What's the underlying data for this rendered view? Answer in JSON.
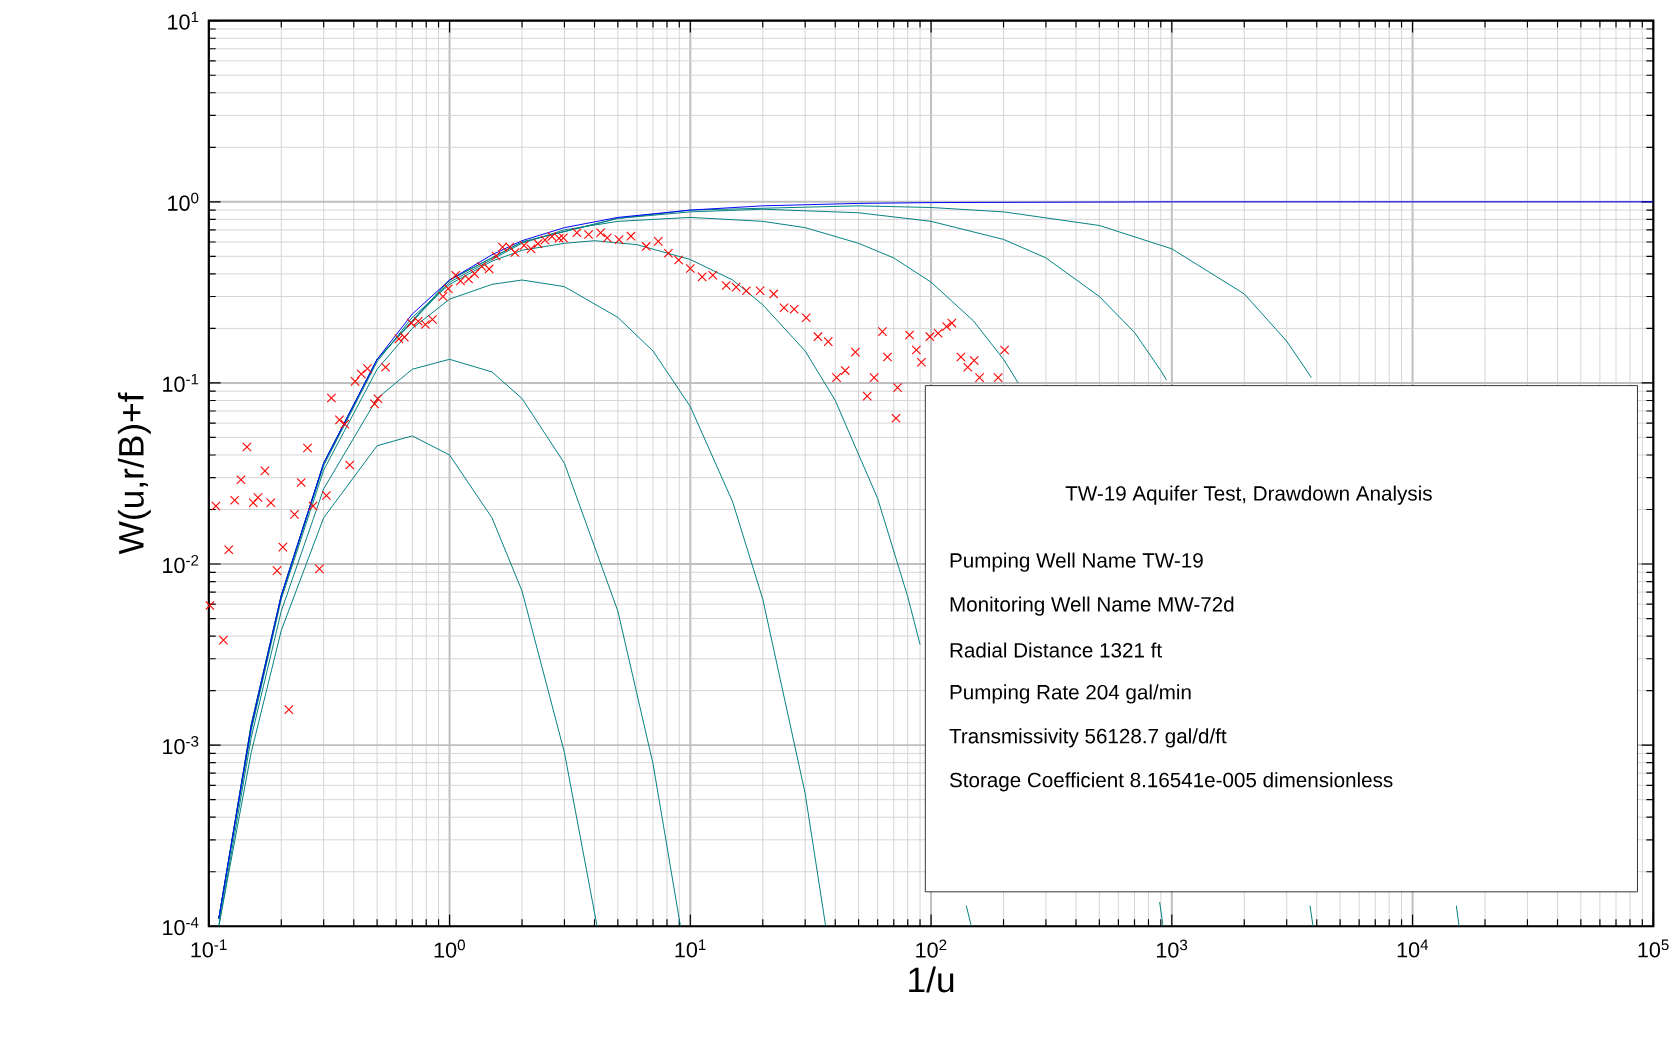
{
  "chart_data": {
    "type": "line",
    "xlabel": "1/u",
    "ylabel": "W(u,r/B)+f",
    "log": "xy",
    "grid": true,
    "line_style": "solid",
    "xlim": [
      0.1,
      100000
    ],
    "ylim": [
      0.0001,
      10
    ],
    "xticks": [
      {
        "value": 0.1,
        "label": "10$^{-1}$"
      },
      {
        "value": 1,
        "label": "10$^{0}$"
      },
      {
        "value": 10,
        "label": "10$^{1}$"
      },
      {
        "value": 100,
        "label": "10$^{2}$"
      },
      {
        "value": 1000,
        "label": "10$^{3}$"
      },
      {
        "value": 10000,
        "label": "10$^{4}$"
      },
      {
        "value": 100000,
        "label": "10$^{5}$"
      }
    ],
    "yticks": [
      {
        "value": 0.0001,
        "label": "10$^{-4}$"
      },
      {
        "value": 0.001,
        "label": "10$^{-3}$"
      },
      {
        "value": 0.01,
        "label": "10$^{-2}$"
      },
      {
        "value": 0.1,
        "label": "10$^{-1}$"
      },
      {
        "value": 1,
        "label": "10$^{0}$"
      },
      {
        "value": 10,
        "label": "10$^{1}$"
      }
    ],
    "annotations": [
      "TW-19 Aquifer Test, Drawdown Analysis",
      "Pumping Well Name  TW-19",
      "Monitoring Well Name  MW-72d",
      "Radial Distance  1321  ft",
      "Pumping Rate  204  gal/min",
      "Transmissivity  56128.7  gal/d/ft",
      "Storage Coefficient  8.16541e-005  dimensionless"
    ],
    "series": [
      {
        "color": "#008080",
        "x": [
          0.11,
          0.15,
          0.2,
          0.3,
          0.5,
          0.7,
          1,
          1.5,
          2,
          3,
          4.1
        ],
        "values": [
          0.0001,
          0.00091,
          0.0043,
          0.018,
          0.045,
          0.051,
          0.04,
          0.018,
          0.0071,
          0.00091,
          0.0001
        ]
      },
      {
        "color": "#008080",
        "x": [
          0.11,
          0.15,
          0.2,
          0.3,
          0.5,
          0.7,
          1,
          1.5,
          2,
          3,
          5,
          7,
          9.1
        ],
        "values": [
          0.0001,
          0.0011,
          0.0055,
          0.026,
          0.082,
          0.119,
          0.135,
          0.115,
          0.082,
          0.036,
          0.0055,
          0.00079,
          0.0001
        ]
      },
      {
        "color": "#008080",
        "x": [
          0.11,
          0.15,
          0.2,
          0.3,
          0.5,
          0.7,
          1,
          1.5,
          2,
          3,
          5,
          7,
          10,
          15,
          20,
          30,
          36.5
        ],
        "values": [
          0.00011,
          0.0012,
          0.0064,
          0.033,
          0.119,
          0.2,
          0.29,
          0.35,
          0.37,
          0.34,
          0.23,
          0.15,
          0.074,
          0.022,
          0.0064,
          0.00054,
          0.0001
        ]
      },
      {
        "color": "#008080",
        "x": [
          0.11,
          0.15,
          0.2,
          0.3,
          0.5,
          0.7,
          1,
          1.5,
          2,
          3,
          4,
          6,
          10,
          15,
          20,
          30,
          40,
          60,
          80,
          90,
          115,
          140,
          147
        ],
        "values": [
          0.00011,
          0.00126,
          0.0066,
          0.035,
          0.131,
          0.23,
          0.35,
          0.47,
          0.54,
          0.59,
          0.61,
          0.58,
          0.48,
          0.37,
          0.27,
          0.15,
          0.08,
          0.023,
          0.0066,
          0.0036,
          null,
          0.00013,
          0.0001
        ]
      },
      {
        "color": "#008080",
        "x": [
          0.11,
          0.15,
          0.2,
          0.3,
          0.5,
          1,
          2,
          3,
          5,
          10,
          20,
          30,
          50,
          70,
          100,
          150,
          200,
          230,
          500,
          890,
          920
        ],
        "values": [
          0.00011,
          0.00127,
          0.0067,
          0.036,
          0.135,
          0.36,
          0.59,
          0.7,
          0.78,
          0.82,
          0.78,
          0.72,
          0.59,
          0.49,
          0.36,
          0.22,
          0.135,
          0.1,
          null,
          0.000136,
          0.0001
        ]
      },
      {
        "color": "#008080",
        "x": [
          0.11,
          0.15,
          0.2,
          0.3,
          0.5,
          1,
          2,
          5,
          10,
          20,
          50,
          100,
          200,
          300,
          500,
          700,
          900,
          950,
          2000,
          3750,
          3860
        ],
        "values": [
          0.00011,
          0.0013,
          0.0067,
          0.036,
          0.135,
          0.37,
          0.6,
          0.81,
          0.88,
          0.91,
          0.87,
          0.78,
          0.62,
          0.49,
          0.3,
          0.19,
          0.117,
          0.104,
          null,
          0.00013,
          0.0001
        ]
      },
      {
        "color": "#008080",
        "x": [
          0.11,
          0.15,
          0.2,
          0.3,
          0.5,
          1,
          2,
          5,
          10,
          50,
          100,
          200,
          500,
          1000,
          2000,
          3000,
          3800,
          8000,
          15200,
          15600
        ],
        "values": [
          0.00011,
          0.0013,
          0.0067,
          0.036,
          0.135,
          0.37,
          0.6,
          0.81,
          0.9,
          0.95,
          0.93,
          0.88,
          0.74,
          0.55,
          0.31,
          0.17,
          0.107,
          null,
          0.00013,
          0.0001
        ]
      },
      {
        "color": "#0000ff",
        "x": [
          0.11,
          0.15,
          0.2,
          0.3,
          0.5,
          0.7,
          1,
          1.5,
          2,
          3,
          5,
          10,
          20,
          50,
          100,
          1000,
          100000
        ],
        "values": [
          0.00011,
          0.00127,
          0.0067,
          0.036,
          0.135,
          0.24,
          0.37,
          0.51,
          0.61,
          0.72,
          0.82,
          0.9,
          0.95,
          0.98,
          0.99,
          1,
          1
        ]
      },
      {
        "type": "scatter",
        "color": "#ff0000",
        "marker": "cross",
        "x": [
          0.107,
          0.101,
          0.115,
          0.121,
          0.128,
          0.136,
          0.144,
          0.153,
          0.16,
          0.171,
          0.181,
          0.192,
          0.203,
          0.215,
          0.227,
          0.242,
          0.257,
          0.271,
          0.288,
          0.308,
          0.323,
          0.349,
          0.367,
          0.385,
          0.405,
          0.43,
          0.456,
          0.488,
          0.504,
          0.542,
          0.616,
          0.649,
          0.694,
          0.741,
          0.794,
          0.849,
          0.939,
          0.988,
          1.06,
          1.11,
          1.2,
          1.27,
          1.36,
          1.46,
          1.56,
          1.66,
          1.78,
          1.87,
          2.04,
          2.18,
          2.33,
          2.49,
          2.66,
          2.85,
          2.97,
          3.38,
          3.78,
          4.24,
          4.52,
          5.06,
          5.67,
          6.56,
          7.36,
          8.11,
          8.94,
          10,
          11.2,
          12.4,
          14.1,
          15.5,
          17.1,
          19.5,
          22.2,
          24.5,
          27,
          30.3,
          33.9,
          37.4,
          40.5,
          44,
          48.5,
          54.3,
          58,
          62.8,
          65.9,
          71.5,
          72.6,
          81.4,
          86.9,
          91.2,
          98.9,
          107,
          116,
          122,
          133,
          142,
          151,
          159,
          190,
          202
        ],
        "values": [
          0.0209,
          0.0059,
          0.0038,
          0.012,
          0.0225,
          0.0292,
          0.0443,
          0.0218,
          0.0233,
          0.0327,
          0.0218,
          0.0092,
          0.0124,
          0.00157,
          0.0188,
          0.0282,
          0.0437,
          0.0209,
          0.0094,
          0.0239,
          0.0826,
          0.0625,
          0.0592,
          0.0352,
          0.102,
          0.112,
          0.12,
          0.0766,
          0.0818,
          0.122,
          0.175,
          0.179,
          0.214,
          0.219,
          0.21,
          0.224,
          0.3,
          0.331,
          0.393,
          0.366,
          0.375,
          0.401,
          0.439,
          0.426,
          0.502,
          0.562,
          0.562,
          0.525,
          0.575,
          0.55,
          0.588,
          0.615,
          0.643,
          0.629,
          0.632,
          0.675,
          0.66,
          0.675,
          0.632,
          0.618,
          0.646,
          0.567,
          0.605,
          0.52,
          0.477,
          0.428,
          0.385,
          0.393,
          0.345,
          0.338,
          0.323,
          0.323,
          0.31,
          0.26,
          0.255,
          0.229,
          0.18,
          0.169,
          0.107,
          0.117,
          0.148,
          0.0845,
          0.107,
          0.192,
          0.139,
          0.0638,
          0.0942,
          0.184,
          0.152,
          0.13,
          0.18,
          0.188,
          0.205,
          0.214,
          0.139,
          0.122,
          0.133,
          0.107,
          0.107,
          0.152
        ]
      }
    ]
  }
}
